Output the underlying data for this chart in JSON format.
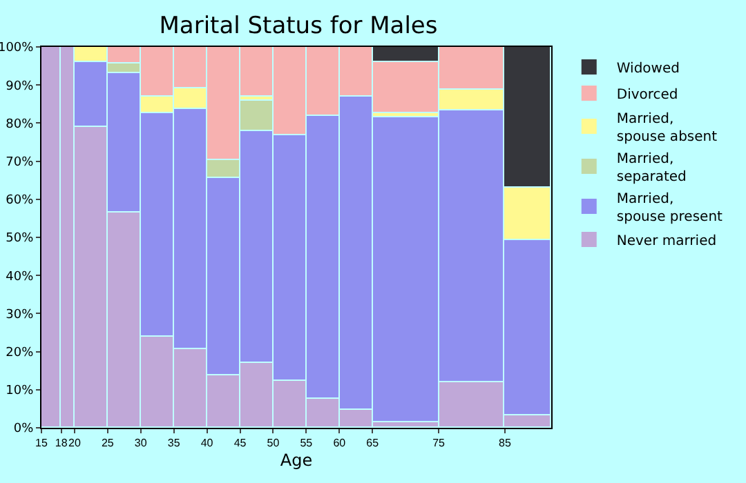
{
  "chart_data": {
    "type": "bar",
    "stacked": true,
    "title": "Marital Status for Males",
    "xlabel": "Age",
    "x": [
      16.5,
      19,
      22.5,
      27.5,
      32.5,
      37.5,
      42.5,
      47.5,
      52.5,
      57.5,
      62.5,
      70,
      80,
      88.5
    ],
    "xlim": [
      15,
      92
    ],
    "xticks": [
      15,
      18,
      20,
      25,
      30,
      35,
      40,
      45,
      50,
      55,
      60,
      65,
      75,
      85
    ],
    "ylim": [
      0,
      100
    ],
    "yticks": [
      {
        "value": 0,
        "label": "0%"
      },
      {
        "value": 10,
        "label": "10%"
      },
      {
        "value": 20,
        "label": "20%"
      },
      {
        "value": 30,
        "label": "30%"
      },
      {
        "value": 40,
        "label": "40%"
      },
      {
        "value": 50,
        "label": "50%"
      },
      {
        "value": 60,
        "label": "60%"
      },
      {
        "value": 70,
        "label": "70%"
      },
      {
        "value": 80,
        "label": "80%"
      },
      {
        "value": 90,
        "label": "90%"
      },
      {
        "value": 100,
        "label": "100%"
      }
    ],
    "legend": "right",
    "series": [
      {
        "name": "Never married",
        "color": "#c0a8d8",
        "values": [
          100,
          100,
          78.9,
          56.5,
          23.8,
          20.5,
          13.9,
          16.9,
          12.5,
          7.7,
          4.8,
          1.5,
          12.1,
          3.3
        ]
      },
      {
        "name": "Married, spouse present",
        "color": "#8f8ff0",
        "values": [
          null,
          null,
          17.2,
          36.7,
          58.7,
          63.1,
          51.7,
          60.9,
          64.2,
          74.1,
          82.1,
          79.9,
          71.2,
          45.8
        ]
      },
      {
        "name": "Married, separated",
        "color": "#c2d8a4",
        "values": [
          null,
          null,
          null,
          2.5,
          null,
          null,
          4.8,
          8.0,
          null,
          null,
          null,
          null,
          null,
          null
        ]
      },
      {
        "name": "Married, spouse absent",
        "color": "#fff990",
        "values": [
          null,
          null,
          3.9,
          null,
          4.4,
          5.5,
          null,
          1.1,
          null,
          null,
          null,
          1.1,
          5.5,
          13.9
        ]
      },
      {
        "name": "Divorced",
        "color": "#f7b1b0",
        "values": [
          null,
          null,
          null,
          4.3,
          13.1,
          10.9,
          29.6,
          13.1,
          23.3,
          18.2,
          13.1,
          13.6,
          11.2,
          null
        ]
      },
      {
        "name": "Widowed",
        "color": "#35363b",
        "values": [
          null,
          null,
          null,
          null,
          null,
          null,
          null,
          null,
          null,
          null,
          null,
          3.9,
          null,
          37.0
        ]
      }
    ]
  }
}
